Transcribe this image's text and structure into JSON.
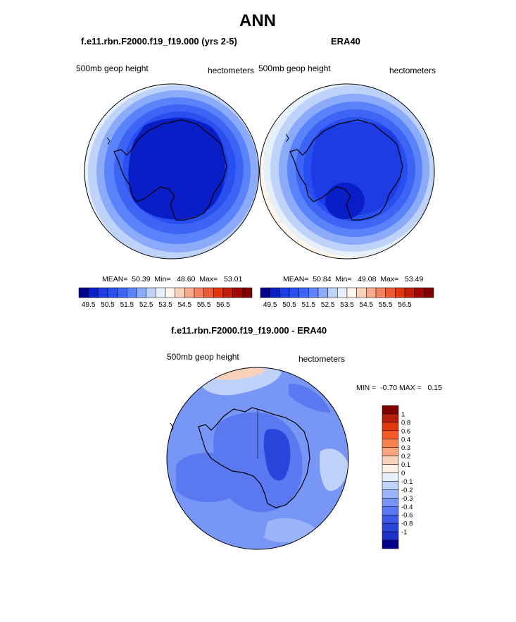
{
  "page": {
    "main_title": "ANN",
    "left_title": "f.e11.rbn.F2000.f19_f19.000 (yrs 2-5)",
    "right_title": "ERA40",
    "diff_title": "f.e11.rbn.F2000.f19_f19.000 - ERA40"
  },
  "panels": {
    "left": {
      "variable": "500mb geop height",
      "units": "hectometers",
      "mean": "50.39",
      "min": "48.60",
      "max": "53.01",
      "stats_text": "MEAN=  50.39  Min=   48.60  Max=   53.01"
    },
    "right": {
      "variable": "500mb geop height",
      "units": "hectometers",
      "mean": "50.84",
      "min": "49.08",
      "max": "53.49",
      "stats_text": "MEAN=  50.84  Min=   49.08  Max=   53.49"
    },
    "diff": {
      "variable": "500mb geop height",
      "units": "hectometers",
      "min": "-0.70",
      "max": "0.15",
      "stats_text": "MIN =  -0.70 MAX =   0.15"
    }
  },
  "colors": {
    "abs_colorbar": [
      "#00008b",
      "#0a1ec8",
      "#1e3ce6",
      "#2850f0",
      "#3c64f5",
      "#5a82fa",
      "#8caafa",
      "#bed2fa",
      "#e6f0fa",
      "#fff5eb",
      "#fad2b9",
      "#faaa8c",
      "#f5825f",
      "#f05a32",
      "#e1370f",
      "#c31e0a",
      "#a00a00",
      "#800000"
    ],
    "diff_colorbar": [
      "#800000",
      "#b41e0a",
      "#e1370f",
      "#f55a28",
      "#f58250",
      "#faa582",
      "#fad2b9",
      "#fff0e6",
      "#e6f0fa",
      "#bed2fa",
      "#9bb4fa",
      "#7896f5",
      "#5a78f0",
      "#3c5ae6",
      "#2846dc",
      "#1e32c8",
      "#00008b"
    ]
  },
  "chart_data": [
    {
      "type": "heatmap",
      "projection": "south-polar-stereographic",
      "title": "f.e11.rbn.F2000.f19_f19.000 (yrs 2-5)",
      "variable": "500mb geop height",
      "units": "hectometers",
      "mean": 50.39,
      "min": 48.6,
      "max": 53.01,
      "colorbar_ticks": [
        "49.5",
        "50.5",
        "51.5",
        "52.5",
        "53.5",
        "54.5",
        "55.5",
        "56.5"
      ],
      "contour_levels": [
        49.0,
        49.5,
        50.0,
        50.5,
        51.0,
        51.5,
        52.0,
        52.5,
        53.0
      ]
    },
    {
      "type": "heatmap",
      "projection": "south-polar-stereographic",
      "title": "ERA40",
      "variable": "500mb geop height",
      "units": "hectometers",
      "mean": 50.84,
      "min": 49.08,
      "max": 53.49,
      "colorbar_ticks": [
        "49.5",
        "50.5",
        "51.5",
        "52.5",
        "53.5",
        "54.5",
        "55.5",
        "56.5"
      ],
      "contour_levels": [
        49.5,
        50.0,
        50.5,
        51.0,
        51.5,
        52.0,
        52.5,
        53.0,
        53.5
      ]
    },
    {
      "type": "heatmap",
      "projection": "south-polar-stereographic",
      "title": "f.e11.rbn.F2000.f19_f19.000 - ERA40",
      "variable": "500mb geop height",
      "units": "hectometers",
      "min": -0.7,
      "max": 0.15,
      "colorbar_ticks": [
        "1",
        "0.8",
        "0.6",
        "0.4",
        "0.3",
        "0.2",
        "0.1",
        "0",
        "-0.1",
        "-0.2",
        "-0.3",
        "-0.4",
        "-0.6",
        "-0.8",
        "-1"
      ]
    }
  ]
}
